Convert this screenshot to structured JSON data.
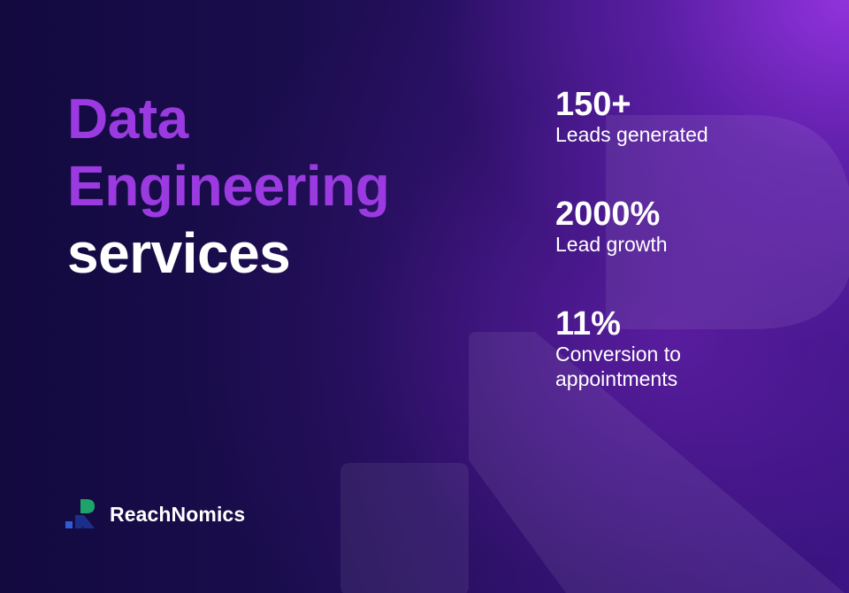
{
  "headline": {
    "line1": "Data",
    "line2": "Engineering",
    "line3": "services"
  },
  "stats": [
    {
      "value": "150+",
      "label": "Leads generated"
    },
    {
      "value": "2000%",
      "label": "Lead growth"
    },
    {
      "value": "11%",
      "label": "Conversion to appointments"
    }
  ],
  "brand": {
    "name": "ReachNomics",
    "logo_icon": "reachnomics-logo-icon"
  },
  "colors": {
    "accent_purple": "#9a3ae0",
    "text_white": "#ffffff",
    "background_dark": "#130a40",
    "logo_green": "#1ea36b",
    "logo_blue": "#2f5bd6",
    "logo_navy": "#1b2f8a"
  }
}
